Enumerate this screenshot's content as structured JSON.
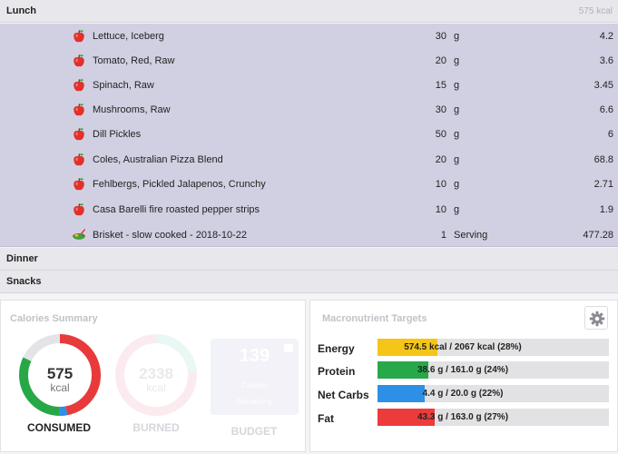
{
  "meals": {
    "lunch": {
      "title": "Lunch",
      "kcal": "575 kcal"
    },
    "dinner": {
      "title": "Dinner"
    },
    "snacks": {
      "title": "Snacks"
    }
  },
  "lunch_items": [
    {
      "name": "Lettuce, Iceberg",
      "qty": "30",
      "unit": "g",
      "kcal": "4.2",
      "icon": "apple-icon"
    },
    {
      "name": "Tomato, Red, Raw",
      "qty": "20",
      "unit": "g",
      "kcal": "3.6",
      "icon": "apple-icon"
    },
    {
      "name": "Spinach, Raw",
      "qty": "15",
      "unit": "g",
      "kcal": "3.45",
      "icon": "apple-icon"
    },
    {
      "name": "Mushrooms, Raw",
      "qty": "30",
      "unit": "g",
      "kcal": "6.6",
      "icon": "apple-icon"
    },
    {
      "name": "Dill Pickles",
      "qty": "50",
      "unit": "g",
      "kcal": "6",
      "icon": "apple-icon"
    },
    {
      "name": "Coles, Australian Pizza Blend",
      "qty": "20",
      "unit": "g",
      "kcal": "68.8",
      "icon": "apple-icon"
    },
    {
      "name": "Fehlbergs, Pickled Jalapenos, Crunchy",
      "qty": "10",
      "unit": "g",
      "kcal": "2.71",
      "icon": "apple-icon"
    },
    {
      "name": "Casa Barelli fire roasted pepper strips",
      "qty": "10",
      "unit": "g",
      "kcal": "1.9",
      "icon": "apple-icon"
    },
    {
      "name": "Brisket - slow cooked - 2018-10-22",
      "qty": "1",
      "unit": "Serving",
      "kcal": "477.28",
      "icon": "recipe-bowl-icon"
    }
  ],
  "calories_summary": {
    "title": "Calories Summary",
    "consumed": {
      "value": "575",
      "unit": "kcal",
      "label": "CONSUMED"
    },
    "burned": {
      "value": "2338",
      "unit": "kcal",
      "label": "BURNED"
    },
    "budget": {
      "value": "139",
      "line1": "Calories",
      "line2": "Remaining",
      "label": "BUDGET"
    },
    "consumed_ring": {
      "red": 0.47,
      "blue": 0.03,
      "green": 0.32,
      "gray": 0.18
    }
  },
  "macro_targets": {
    "title": "Macronutrient Targets",
    "rows": [
      {
        "label": "Energy",
        "text": "574.5 kcal / 2067 kcal (28%)",
        "pct": 28,
        "color": "#f5c518"
      },
      {
        "label": "Protein",
        "text": "38.6 g / 161.0 g (24%)",
        "pct": 24,
        "color": "#27a84a"
      },
      {
        "label": "Net Carbs",
        "text": "4.4 g / 20.0 g (22%)",
        "pct": 22,
        "color": "#2e8fe6"
      },
      {
        "label": "Fat",
        "text": "43.3 g / 163.0 g (27%)",
        "pct": 27,
        "color": "#ec3b3b"
      }
    ]
  },
  "colors": {
    "lunch_bg": "#d1d0e2",
    "ring_red": "#e83a3a",
    "ring_green": "#26a846",
    "ring_blue": "#2e8fe6"
  }
}
